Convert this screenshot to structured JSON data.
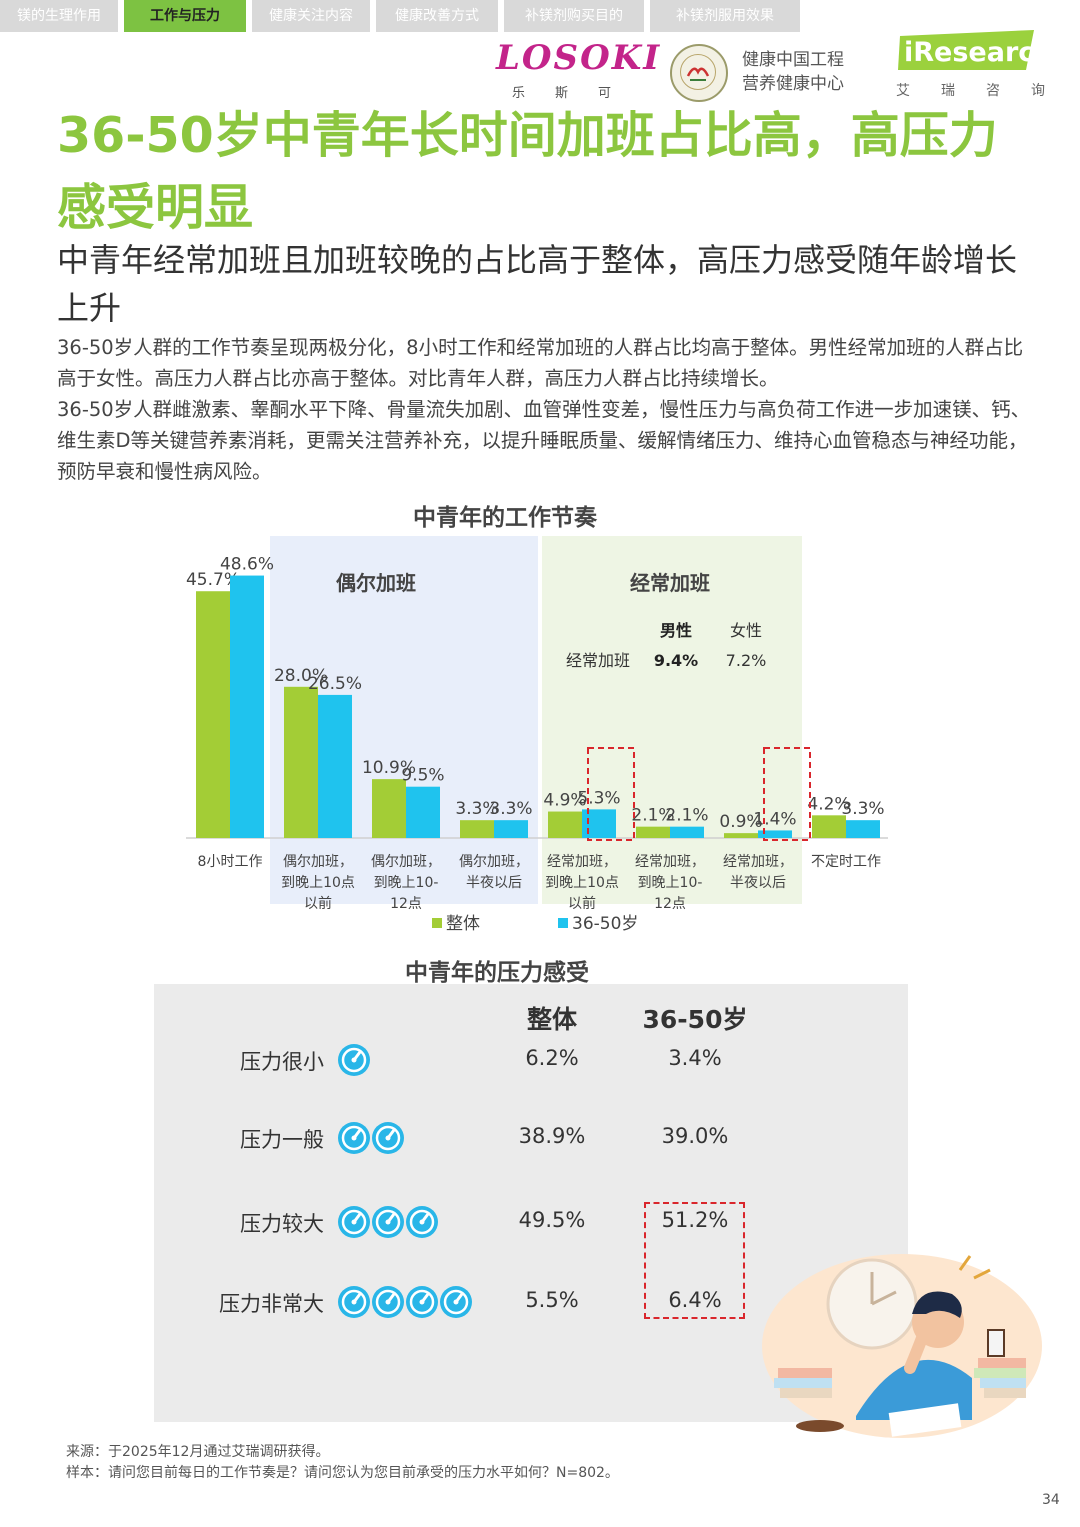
{
  "nav": {
    "tabs": [
      {
        "label": "镁的生理作用",
        "active": false
      },
      {
        "label": "工作与压力",
        "active": true
      },
      {
        "label": "健康关注内容",
        "active": false
      },
      {
        "label": "健康改善方式",
        "active": false
      },
      {
        "label": "补镁剂购买目的",
        "active": false
      },
      {
        "label": "补镁剂服用效果",
        "active": false
      }
    ]
  },
  "logos": {
    "losoki": "LOSOKI",
    "losoki_sub": "乐斯可",
    "center_line1": "健康中国工程",
    "center_line2": "营养健康中心",
    "iresearch": "iResearch",
    "iresearch_sub": "艾瑞咨询"
  },
  "title": "36-50岁中青年长时间加班占比高，高压力感受明显",
  "subtitle": "中青年经常加班且加班较晚的占比高于整体，高压力感受随年龄增长上升",
  "paragraphs": [
    "36-50岁人群的工作节奏呈现两极分化，8小时工作和经常加班的人群占比均高于整体。男性经常加班的人群占比高于女性。高压力人群占比亦高于整体。对比青年人群，高压力人群占比持续增长。",
    "36-50岁人群雌激素、睾酮水平下降、骨量流失加剧、血管弹性变差，慢性压力与高负荷工作进一步加速镁、钙、维生素D等关键营养素消耗，更需关注营养补充，以提升睡眠质量、缓解情绪压力、维持心血管稳态与神经功能，预防早衰和慢性病风险。"
  ],
  "chart_data": {
    "type": "bar",
    "title": "中青年的工作节奏",
    "categories": [
      "8小时工作",
      "偶尔加班，到晚上10点以前",
      "偶尔加班，到晚上10-12点",
      "偶尔加班，半夜以后",
      "经常加班，到晚上10点以前",
      "经常加班，到晚上10-12点",
      "经常加班，半夜以后",
      "不定时工作"
    ],
    "category_lines": [
      [
        "8小时工作"
      ],
      [
        "偶尔加班，",
        "到晚上10点",
        "以前"
      ],
      [
        "偶尔加班，",
        "到晚上10-",
        "12点"
      ],
      [
        "偶尔加班，",
        "半夜以后"
      ],
      [
        "经常加班，",
        "到晚上10点",
        "以前"
      ],
      [
        "经常加班，",
        "到晚上10-",
        "12点"
      ],
      [
        "经常加班，",
        "半夜以后"
      ],
      [
        "不定时工作"
      ]
    ],
    "series": [
      {
        "name": "整体",
        "color": "#a3cd36",
        "values": [
          45.7,
          28.0,
          10.9,
          3.3,
          4.9,
          2.1,
          0.9,
          4.2
        ]
      },
      {
        "name": "36-50岁",
        "color": "#1fc3ee",
        "values": [
          48.6,
          26.5,
          9.5,
          3.3,
          5.3,
          2.1,
          1.4,
          3.3
        ]
      }
    ],
    "value_labels": [
      [
        "45.7%",
        "28.0%",
        "10.9%",
        "3.3%",
        "4.9%",
        "2.1%",
        "0.9%",
        "4.2%"
      ],
      [
        "48.6%",
        "26.5%",
        "9.5%",
        "3.3%",
        "5.3%",
        "2.1%",
        "1.4%",
        "3.3%"
      ]
    ],
    "groups": [
      {
        "label": "偶尔加班",
        "color": "#e8eefa"
      },
      {
        "label": "经常加班",
        "color": "#eef5e4"
      }
    ],
    "gender_table": {
      "headers": [
        "男性",
        "女性"
      ],
      "row_label": "经常加班",
      "values": [
        "9.4%",
        "7.2%"
      ]
    },
    "legend_position": "bottom",
    "grid": false
  },
  "stress": {
    "title": "中青年的压力感受",
    "headers": [
      "整体",
      "36-50岁"
    ],
    "rows": [
      {
        "label": "压力很小",
        "gauges": 1,
        "overall": "6.2%",
        "age": "3.4%"
      },
      {
        "label": "压力一般",
        "gauges": 2,
        "overall": "38.9%",
        "age": "39.0%"
      },
      {
        "label": "压力较大",
        "gauges": 3,
        "overall": "49.5%",
        "age": "51.2%"
      },
      {
        "label": "压力非常大",
        "gauges": 4,
        "overall": "5.5%",
        "age": "6.4%"
      }
    ]
  },
  "footer": {
    "source": "来源：于2025年12月通过艾瑞调研获得。",
    "sample": "样本：请问您目前每日的工作节奏是？请问您认为您目前承受的压力水平如何？N=802。",
    "page": "34"
  }
}
